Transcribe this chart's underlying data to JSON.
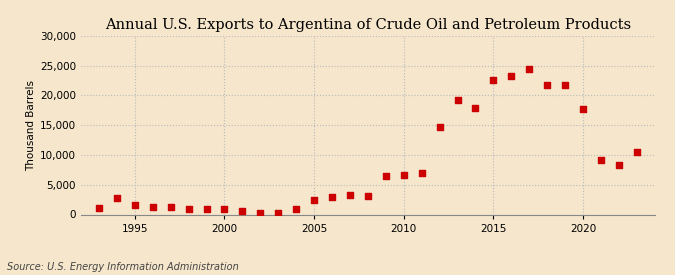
{
  "title": "Annual U.S. Exports to Argentina of Crude Oil and Petroleum Products",
  "ylabel": "Thousand Barrels",
  "source": "Source: U.S. Energy Information Administration",
  "background_color": "#f5e6cc",
  "plot_bg_color": "#f5e6cc",
  "marker_color": "#cc0000",
  "marker_size": 4,
  "years": [
    1993,
    1994,
    1995,
    1996,
    1997,
    1998,
    1999,
    2000,
    2001,
    2002,
    2003,
    2004,
    2005,
    2006,
    2007,
    2008,
    2009,
    2010,
    2011,
    2012,
    2013,
    2014,
    2015,
    2016,
    2017,
    2018,
    2019,
    2020,
    2021,
    2022,
    2023
  ],
  "values": [
    1100,
    2800,
    1600,
    1200,
    1300,
    900,
    1000,
    1000,
    600,
    200,
    300,
    900,
    2500,
    2900,
    3200,
    3100,
    6500,
    6700,
    7000,
    14700,
    19200,
    17900,
    22500,
    23200,
    24500,
    21700,
    21700,
    17700,
    9100,
    8300,
    10500
  ],
  "ylim": [
    0,
    30000
  ],
  "yticks": [
    0,
    5000,
    10000,
    15000,
    20000,
    25000,
    30000
  ],
  "xlim": [
    1992,
    2024
  ],
  "xticks": [
    1995,
    2000,
    2005,
    2010,
    2015,
    2020
  ],
  "grid_color": "#bbbbbb",
  "title_fontsize": 10.5,
  "label_fontsize": 7.5,
  "tick_fontsize": 7.5,
  "source_fontsize": 7
}
